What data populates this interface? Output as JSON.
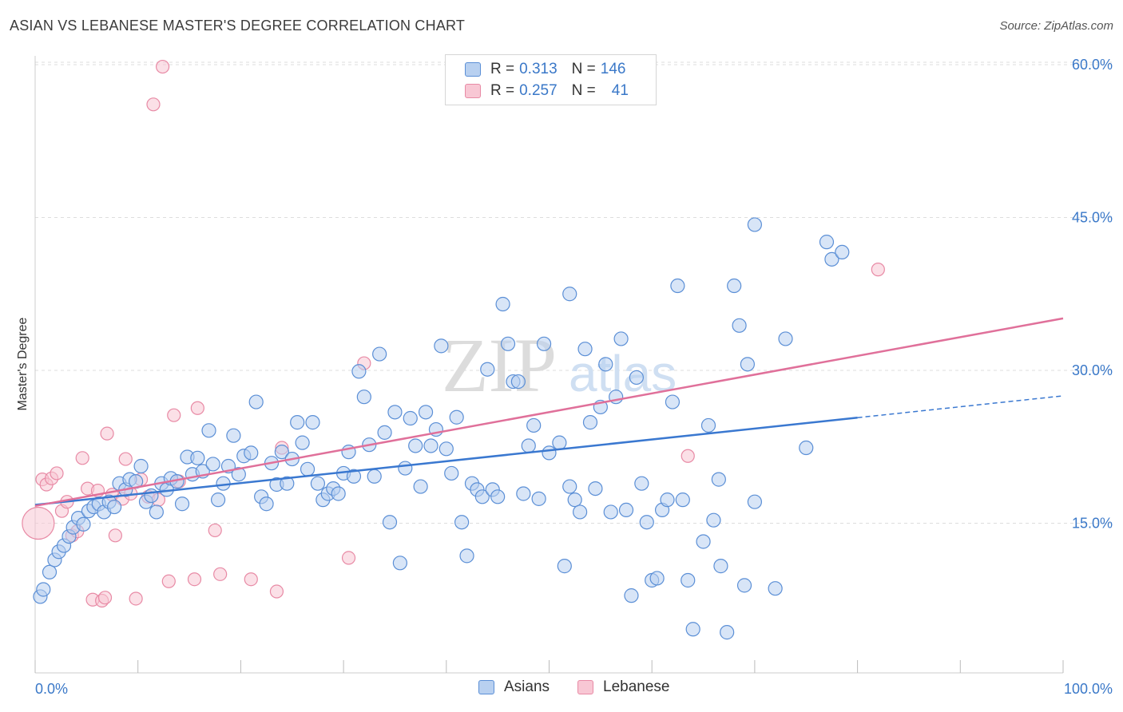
{
  "title": "ASIAN VS LEBANESE MASTER'S DEGREE CORRELATION CHART",
  "source": "Source: ZipAtlas.com",
  "watermark": {
    "zip": "ZIP",
    "atlas": "atlas"
  },
  "colors": {
    "asian_fill": "#b8d0f0",
    "asian_stroke": "#5b8fd6",
    "asian_line": "#3a78d0",
    "lebanese_fill": "#f8c7d4",
    "lebanese_stroke": "#e88aa5",
    "lebanese_line": "#e0709a",
    "tick_label": "#3a78c8",
    "grid": "#dddddd"
  },
  "legend_top": {
    "rows": [
      {
        "r_label": "R =",
        "r_value": "0.313",
        "n_label": "N =",
        "n_value": "146"
      },
      {
        "r_label": "R =",
        "r_value": "0.257",
        "n_label": "N =",
        "n_value": "41"
      }
    ]
  },
  "legend_bottom": [
    "Asians",
    "Lebanese"
  ],
  "chart_data": {
    "type": "scatter",
    "title": "ASIAN VS LEBANESE MASTER'S DEGREE CORRELATION CHART",
    "xlabel": "",
    "ylabel": "Master's Degree",
    "xlim": [
      0,
      100
    ],
    "ylim": [
      0,
      63
    ],
    "x_tick_labels": [
      "0.0%",
      "100.0%"
    ],
    "y_ticks": [
      15,
      30,
      45,
      60
    ],
    "y_tick_labels": [
      "15.0%",
      "30.0%",
      "45.0%",
      "60.0%"
    ],
    "grid": true,
    "legend_position": "top-center",
    "series": [
      {
        "name": "Asians",
        "r": 0.313,
        "n": 146,
        "trend": {
          "x0": 0,
          "y0": 16.8,
          "x1": 100,
          "y1": 27.5,
          "solid_until": 80
        },
        "points": [
          [
            0.5,
            7.8
          ],
          [
            0.8,
            8.5
          ],
          [
            1.4,
            10.2
          ],
          [
            1.9,
            11.4
          ],
          [
            2.3,
            12.2
          ],
          [
            2.8,
            12.8
          ],
          [
            3.3,
            13.7
          ],
          [
            3.7,
            14.6
          ],
          [
            4.2,
            15.5
          ],
          [
            4.7,
            14.9
          ],
          [
            5.2,
            16.2
          ],
          [
            5.7,
            16.6
          ],
          [
            6.2,
            16.9
          ],
          [
            6.7,
            16.1
          ],
          [
            7.2,
            17.1
          ],
          [
            7.7,
            16.6
          ],
          [
            8.2,
            18.9
          ],
          [
            8.8,
            18.3
          ],
          [
            9.2,
            19.3
          ],
          [
            9.8,
            19.1
          ],
          [
            10.3,
            20.6
          ],
          [
            10.8,
            17.1
          ],
          [
            11.3,
            17.7
          ],
          [
            11.8,
            16.1
          ],
          [
            12.3,
            18.9
          ],
          [
            12.8,
            18.3
          ],
          [
            13.2,
            19.4
          ],
          [
            13.8,
            19.1
          ],
          [
            14.3,
            16.9
          ],
          [
            14.8,
            21.5
          ],
          [
            15.3,
            19.8
          ],
          [
            15.8,
            21.4
          ],
          [
            16.3,
            20.1
          ],
          [
            16.9,
            24.1
          ],
          [
            17.3,
            20.8
          ],
          [
            17.8,
            17.3
          ],
          [
            18.3,
            18.9
          ],
          [
            18.8,
            20.6
          ],
          [
            19.3,
            23.6
          ],
          [
            19.8,
            19.8
          ],
          [
            20.3,
            21.6
          ],
          [
            21.0,
            21.9
          ],
          [
            21.5,
            26.9
          ],
          [
            22.0,
            17.6
          ],
          [
            22.5,
            16.9
          ],
          [
            23.0,
            20.9
          ],
          [
            23.5,
            18.8
          ],
          [
            24.0,
            22.0
          ],
          [
            24.5,
            18.9
          ],
          [
            25.0,
            21.3
          ],
          [
            25.5,
            24.9
          ],
          [
            26.0,
            22.9
          ],
          [
            26.5,
            20.3
          ],
          [
            27.0,
            24.9
          ],
          [
            27.5,
            18.9
          ],
          [
            28.0,
            17.3
          ],
          [
            28.5,
            17.9
          ],
          [
            29.0,
            18.4
          ],
          [
            29.5,
            17.9
          ],
          [
            30.0,
            19.9
          ],
          [
            30.5,
            22.0
          ],
          [
            31.0,
            19.6
          ],
          [
            31.5,
            29.9
          ],
          [
            32.0,
            27.4
          ],
          [
            32.5,
            22.7
          ],
          [
            33.0,
            19.6
          ],
          [
            33.5,
            31.6
          ],
          [
            34.0,
            23.9
          ],
          [
            34.5,
            15.1
          ],
          [
            35.0,
            25.9
          ],
          [
            35.5,
            11.1
          ],
          [
            36.0,
            20.4
          ],
          [
            36.5,
            25.3
          ],
          [
            37.0,
            22.6
          ],
          [
            37.5,
            18.6
          ],
          [
            38.0,
            25.9
          ],
          [
            38.5,
            22.6
          ],
          [
            39.0,
            24.2
          ],
          [
            39.5,
            32.4
          ],
          [
            40.0,
            22.3
          ],
          [
            40.5,
            19.9
          ],
          [
            41.0,
            25.4
          ],
          [
            41.5,
            15.1
          ],
          [
            42.0,
            11.8
          ],
          [
            42.5,
            18.9
          ],
          [
            43.0,
            18.3
          ],
          [
            43.5,
            17.6
          ],
          [
            44.0,
            30.1
          ],
          [
            44.5,
            18.3
          ],
          [
            45.0,
            17.6
          ],
          [
            45.5,
            36.5
          ],
          [
            46.0,
            32.6
          ],
          [
            46.5,
            28.9
          ],
          [
            47.0,
            28.9
          ],
          [
            47.5,
            17.9
          ],
          [
            48.0,
            22.6
          ],
          [
            48.5,
            24.6
          ],
          [
            49.0,
            17.4
          ],
          [
            49.5,
            32.6
          ],
          [
            50.0,
            21.9
          ],
          [
            51.0,
            22.9
          ],
          [
            51.5,
            10.8
          ],
          [
            52.0,
            18.6
          ],
          [
            52.5,
            17.3
          ],
          [
            53.0,
            16.1
          ],
          [
            53.5,
            32.1
          ],
          [
            54.0,
            24.9
          ],
          [
            54.5,
            18.4
          ],
          [
            55.0,
            26.4
          ],
          [
            55.5,
            30.6
          ],
          [
            56.0,
            16.1
          ],
          [
            56.5,
            27.4
          ],
          [
            57.0,
            33.1
          ],
          [
            57.5,
            16.3
          ],
          [
            58.0,
            7.9
          ],
          [
            58.5,
            29.3
          ],
          [
            59.0,
            18.9
          ],
          [
            59.5,
            15.1
          ],
          [
            60.0,
            9.4
          ],
          [
            60.5,
            9.6
          ],
          [
            61.0,
            16.3
          ],
          [
            61.5,
            17.3
          ],
          [
            62.0,
            26.9
          ],
          [
            62.5,
            38.3
          ],
          [
            63.0,
            17.3
          ],
          [
            63.5,
            9.4
          ],
          [
            64.0,
            4.6
          ],
          [
            65.0,
            13.2
          ],
          [
            65.5,
            24.6
          ],
          [
            66.0,
            15.3
          ],
          [
            66.5,
            19.3
          ],
          [
            66.7,
            10.8
          ],
          [
            67.3,
            4.3
          ],
          [
            68.0,
            38.3
          ],
          [
            68.5,
            34.4
          ],
          [
            69.0,
            8.9
          ],
          [
            69.3,
            30.6
          ],
          [
            70.0,
            17.1
          ],
          [
            72.0,
            8.6
          ],
          [
            73.0,
            33.1
          ],
          [
            75.0,
            22.4
          ],
          [
            77.0,
            42.6
          ],
          [
            77.5,
            40.9
          ],
          [
            78.5,
            41.6
          ],
          [
            70.0,
            44.3
          ],
          [
            52.0,
            37.5
          ]
        ]
      },
      {
        "name": "Lebanese",
        "r": 0.257,
        "n": 41,
        "trend": {
          "x0": 0,
          "y0": 16.7,
          "x1": 100,
          "y1": 35.1
        },
        "points": [
          [
            0.3,
            15.0
          ],
          [
            0.7,
            19.3
          ],
          [
            1.1,
            18.8
          ],
          [
            1.6,
            19.4
          ],
          [
            2.1,
            19.9
          ],
          [
            2.6,
            16.2
          ],
          [
            3.1,
            17.1
          ],
          [
            3.6,
            13.8
          ],
          [
            4.1,
            14.2
          ],
          [
            4.6,
            21.4
          ],
          [
            5.1,
            18.4
          ],
          [
            5.6,
            7.5
          ],
          [
            6.1,
            18.2
          ],
          [
            6.5,
            7.4
          ],
          [
            6.8,
            7.7
          ],
          [
            7.0,
            23.8
          ],
          [
            7.5,
            17.8
          ],
          [
            7.8,
            13.8
          ],
          [
            8.5,
            17.4
          ],
          [
            8.8,
            21.3
          ],
          [
            9.3,
            17.9
          ],
          [
            9.8,
            7.6
          ],
          [
            10.3,
            19.3
          ],
          [
            11.0,
            17.6
          ],
          [
            11.5,
            56.1
          ],
          [
            12.0,
            17.3
          ],
          [
            12.4,
            59.8
          ],
          [
            13.0,
            9.3
          ],
          [
            13.5,
            25.6
          ],
          [
            14.0,
            19.1
          ],
          [
            15.5,
            9.5
          ],
          [
            15.8,
            26.3
          ],
          [
            17.5,
            14.3
          ],
          [
            18.0,
            10.0
          ],
          [
            21.0,
            9.5
          ],
          [
            23.5,
            8.3
          ],
          [
            24.0,
            22.4
          ],
          [
            30.5,
            11.6
          ],
          [
            32.0,
            30.7
          ],
          [
            63.5,
            21.6
          ],
          [
            82.0,
            39.9
          ]
        ]
      }
    ]
  }
}
